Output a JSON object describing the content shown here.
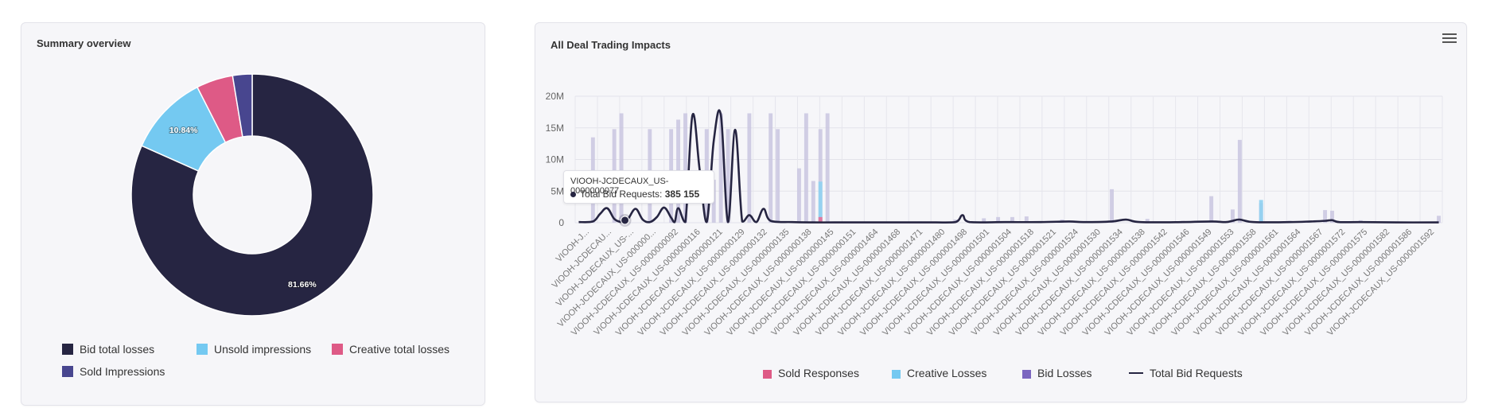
{
  "colors": {
    "bid_total_losses": "#262542",
    "unsold_impressions": "#74c9f1",
    "creative_total_losses": "#de5a86",
    "sold_impressions": "#48468f",
    "bid_losses_bar": "#c9c6e0",
    "creative_losses_bar": "#8fd2f1",
    "sold_responses_bar": "#e76f97",
    "total_bid_requests_line": "#262542",
    "legend_bid_losses": "#7b66c0"
  },
  "summary": {
    "title": "Summary overview"
  },
  "deal": {
    "title": "All Deal Trading Impacts",
    "menu_icon": "hamburger-menu-icon"
  },
  "chart_data": [
    {
      "type": "pie",
      "title": "Summary overview",
      "donut": true,
      "slices": [
        {
          "name": "Bid total losses",
          "value": 81.66,
          "label": "81.66%",
          "color": "#262542"
        },
        {
          "name": "Unsold impressions",
          "value": 10.84,
          "label": "10.84%",
          "color": "#74c9f1"
        },
        {
          "name": "Creative total losses",
          "value": 4.9,
          "label": "",
          "color": "#de5a86"
        },
        {
          "name": "Sold Impressions",
          "value": 2.6,
          "label": "",
          "color": "#48468f"
        }
      ],
      "legend": [
        "Bid total losses",
        "Unsold impressions",
        "Creative total losses",
        "Sold Impressions"
      ],
      "legend_position": "bottom"
    },
    {
      "type": "bar",
      "title": "All Deal Trading Impacts",
      "ylim": [
        0,
        20000000
      ],
      "yticks": [
        "0",
        "5M",
        "10M",
        "15M",
        "20M"
      ],
      "ytick_values": [
        0,
        5000000,
        10000000,
        15000000,
        20000000
      ],
      "grid": true,
      "legend_position": "bottom",
      "categories": [
        "VIOOH-J...",
        "VIOOH-JCDECAU...",
        "VIOOH-JCDECAUX_US-...",
        "VIOOH-JCDECAUX_US-000000...",
        "VIOOH-JCDECAUX_US-0000000092",
        "VIOOH-JCDECAUX_US-0000000116",
        "VIOOH-JCDECAUX_US-0000000121",
        "VIOOH-JCDECAUX_US-0000000129",
        "VIOOH-JCDECAUX_US-0000000132",
        "VIOOH-JCDECAUX_US-0000000135",
        "VIOOH-JCDECAUX_US-0000000138",
        "VIOOH-JCDECAUX_US-0000000145",
        "VIOOH-JCDECAUX_US-0000000151",
        "VIOOH-JCDECAUX_US-0000001464",
        "VIOOH-JCDECAUX_US-0000001468",
        "VIOOH-JCDECAUX_US-0000001471",
        "VIOOH-JCDECAUX_US-0000001480",
        "VIOOH-JCDECAUX_US-0000001498",
        "VIOOH-JCDECAUX_US-0000001501",
        "VIOOH-JCDECAUX_US-0000001504",
        "VIOOH-JCDECAUX_US-0000001518",
        "VIOOH-JCDECAUX_US-0000001521",
        "VIOOH-JCDECAUX_US-0000001524",
        "VIOOH-JCDECAUX_US-0000001530",
        "VIOOH-JCDECAUX_US-0000001534",
        "VIOOH-JCDECAUX_US-0000001538",
        "VIOOH-JCDECAUX_US-0000001542",
        "VIOOH-JCDECAUX_US-0000001546",
        "VIOOH-JCDECAUX_US-0000001549",
        "VIOOH-JCDECAUX_US-0000001553",
        "VIOOH-JCDECAUX_US-0000001558",
        "VIOOH-JCDECAUX_US-0000001561",
        "VIOOH-JCDECAUX_US-0000001564",
        "VIOOH-JCDECAUX_US-0000001567",
        "VIOOH-JCDECAUX_US-0000001572",
        "VIOOH-JCDECAUX_US-0000001575",
        "VIOOH-JCDECAUX_US-0000001582",
        "VIOOH-JCDECAUX_US-0000001586",
        "VIOOH-JCDECAUX_US-0000001592"
      ],
      "bar_series": [
        {
          "name": "Sold Responses",
          "color": "#e76f97",
          "slot_values": [
            [
              34,
              900000
            ]
          ]
        },
        {
          "name": "Creative Losses",
          "color": "#8fd2f1",
          "slot_values": [
            [
              34,
              6500000
            ],
            [
              96,
              3600000
            ],
            [
              143,
              1500000
            ]
          ]
        },
        {
          "name": "Bid Losses",
          "color": "#c9c6e0",
          "slot_values": [
            [
              2,
              13500000
            ],
            [
              5,
              14800000
            ],
            [
              6,
              17300000
            ],
            [
              10,
              14800000
            ],
            [
              13,
              14800000
            ],
            [
              14,
              16300000
            ],
            [
              15,
              17300000
            ],
            [
              18,
              14800000
            ],
            [
              19,
              6800000
            ],
            [
              20,
              17300000
            ],
            [
              21,
              14800000
            ],
            [
              24,
              17300000
            ],
            [
              27,
              17300000
            ],
            [
              28,
              14800000
            ],
            [
              31,
              8600000
            ],
            [
              32,
              17300000
            ],
            [
              33,
              6600000
            ],
            [
              34,
              14800000
            ],
            [
              35,
              17300000
            ],
            [
              48,
              200000
            ],
            [
              53,
              500000
            ],
            [
              57,
              700000
            ],
            [
              59,
              900000
            ],
            [
              61,
              900000
            ],
            [
              63,
              1000000
            ],
            [
              68,
              500000
            ],
            [
              75,
              5300000
            ],
            [
              80,
              600000
            ],
            [
              85,
              300000
            ],
            [
              89,
              4200000
            ],
            [
              92,
              2100000
            ],
            [
              93,
              13100000
            ],
            [
              96,
              3100000
            ],
            [
              100,
              300000
            ],
            [
              105,
              2000000
            ],
            [
              106,
              1900000
            ],
            [
              110,
              400000
            ],
            [
              121,
              1100000
            ]
          ]
        }
      ],
      "bar_slot_count": 122,
      "line_series": {
        "name": "Total Bid Requests",
        "color": "#262542",
        "points": [
          [
            0,
            100000
          ],
          [
            2,
            200000
          ],
          [
            3,
            1400000
          ],
          [
            4,
            2300000
          ],
          [
            5,
            600000
          ],
          [
            6,
            100000
          ],
          [
            6.5,
            385155
          ],
          [
            7,
            700000
          ],
          [
            8,
            2200000
          ],
          [
            9,
            500000
          ],
          [
            10,
            100000
          ],
          [
            11,
            900000
          ],
          [
            12,
            2400000
          ],
          [
            13,
            800000
          ],
          [
            13.5,
            100000
          ],
          [
            14,
            2300000
          ],
          [
            15,
            100000
          ],
          [
            16,
            17000000
          ],
          [
            17,
            8500000
          ],
          [
            18,
            100000
          ],
          [
            19,
            13000000
          ],
          [
            20,
            17000000
          ],
          [
            21,
            100000
          ],
          [
            22,
            14700000
          ],
          [
            23,
            200000
          ],
          [
            24,
            1200000
          ],
          [
            25,
            100000
          ],
          [
            26,
            2200000
          ],
          [
            27,
            300000
          ],
          [
            30,
            100000
          ],
          [
            33,
            50000
          ],
          [
            36,
            50000
          ],
          [
            40,
            50000
          ],
          [
            45,
            50000
          ],
          [
            50,
            50000
          ],
          [
            53,
            100000
          ],
          [
            54,
            1200000
          ],
          [
            55,
            100000
          ],
          [
            60,
            100000
          ],
          [
            65,
            100000
          ],
          [
            69,
            200000
          ],
          [
            71,
            100000
          ],
          [
            75,
            200000
          ],
          [
            77,
            500000
          ],
          [
            79,
            100000
          ],
          [
            85,
            100000
          ],
          [
            89,
            200000
          ],
          [
            91,
            100000
          ],
          [
            92,
            300000
          ],
          [
            93,
            500000
          ],
          [
            95,
            100000
          ],
          [
            100,
            100000
          ],
          [
            103,
            200000
          ],
          [
            105,
            300000
          ],
          [
            106,
            400000
          ],
          [
            107,
            100000
          ],
          [
            110,
            100000
          ],
          [
            115,
            50000
          ],
          [
            121,
            50000
          ]
        ]
      },
      "tooltip": {
        "category": "VIOOH-JCDECAUX_US-0000000077",
        "series": "Total Bid Requests",
        "label": "Total Bid Requests: ",
        "value": "385 155"
      },
      "legend": [
        "Sold Responses",
        "Creative Losses",
        "Bid Losses",
        "Total Bid Requests"
      ]
    }
  ]
}
